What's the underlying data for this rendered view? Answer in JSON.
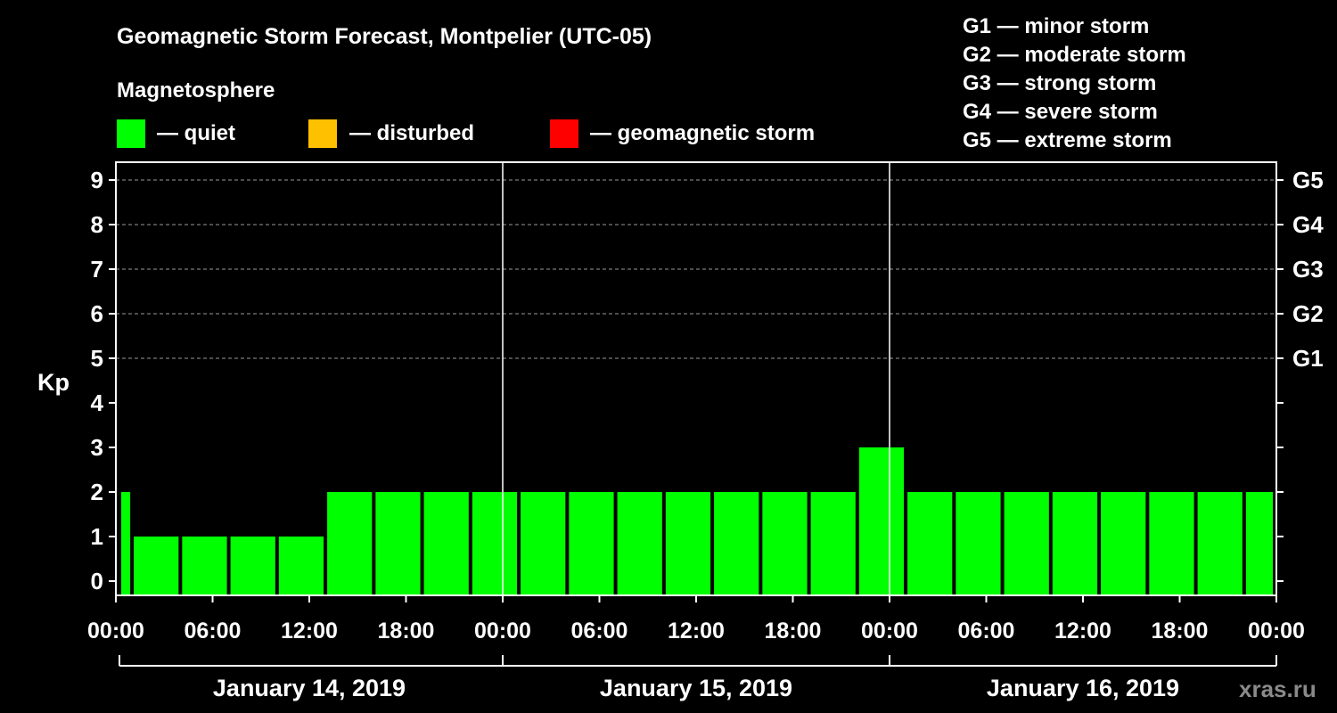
{
  "chart_data": {
    "type": "bar",
    "title": "Geomagnetic Storm Forecast, Montpelier (UTC-05)",
    "legend_title": "Magnetosphere",
    "legend": [
      {
        "label": "— quiet",
        "color": "#00ff00"
      },
      {
        "label": "— disturbed",
        "color": "#ffc000"
      },
      {
        "label": "— geomagnetic storm",
        "color": "#ff0000"
      }
    ],
    "storm_scale": [
      "G1 — minor storm",
      "G2 — moderate storm",
      "G3 — strong storm",
      "G4 — severe storm",
      "G5 — extreme storm"
    ],
    "ylabel": "Kp",
    "ylim": [
      0,
      9
    ],
    "yticks": [
      "0",
      "1",
      "2",
      "3",
      "4",
      "5",
      "6",
      "7",
      "8",
      "9"
    ],
    "right_ticks": [
      {
        "kp": 5,
        "label": "G1"
      },
      {
        "kp": 6,
        "label": "G2"
      },
      {
        "kp": 7,
        "label": "G3"
      },
      {
        "kp": 8,
        "label": "G4"
      },
      {
        "kp": 9,
        "label": "G5"
      }
    ],
    "xlim_hours": [
      0,
      72
    ],
    "x_tick_labels": [
      "00:00",
      "06:00",
      "12:00",
      "18:00",
      "00:00",
      "06:00",
      "12:00",
      "18:00",
      "00:00",
      "06:00",
      "12:00",
      "18:00",
      "00:00"
    ],
    "dates": [
      "January 14, 2019",
      "January 15, 2019",
      "January 16, 2019"
    ],
    "bars": [
      {
        "start": 0,
        "end": 1,
        "value": 2
      },
      {
        "start": 1,
        "end": 4,
        "value": 1
      },
      {
        "start": 4,
        "end": 7,
        "value": 1
      },
      {
        "start": 7,
        "end": 10,
        "value": 1
      },
      {
        "start": 10,
        "end": 13,
        "value": 1
      },
      {
        "start": 13,
        "end": 16,
        "value": 2
      },
      {
        "start": 16,
        "end": 19,
        "value": 2
      },
      {
        "start": 19,
        "end": 22,
        "value": 2
      },
      {
        "start": 22,
        "end": 25,
        "value": 2
      },
      {
        "start": 25,
        "end": 28,
        "value": 2
      },
      {
        "start": 28,
        "end": 31,
        "value": 2
      },
      {
        "start": 31,
        "end": 34,
        "value": 2
      },
      {
        "start": 34,
        "end": 37,
        "value": 2
      },
      {
        "start": 37,
        "end": 40,
        "value": 2
      },
      {
        "start": 40,
        "end": 43,
        "value": 2
      },
      {
        "start": 43,
        "end": 46,
        "value": 2
      },
      {
        "start": 46,
        "end": 49,
        "value": 3
      },
      {
        "start": 49,
        "end": 52,
        "value": 2
      },
      {
        "start": 52,
        "end": 55,
        "value": 2
      },
      {
        "start": 55,
        "end": 58,
        "value": 2
      },
      {
        "start": 58,
        "end": 61,
        "value": 2
      },
      {
        "start": 61,
        "end": 64,
        "value": 2
      },
      {
        "start": 64,
        "end": 67,
        "value": 2
      },
      {
        "start": 67,
        "end": 70,
        "value": 2
      },
      {
        "start": 70,
        "end": 72,
        "value": 2
      }
    ],
    "bar_color": "#00ff00",
    "grid": true
  },
  "watermark": "xras.ru"
}
